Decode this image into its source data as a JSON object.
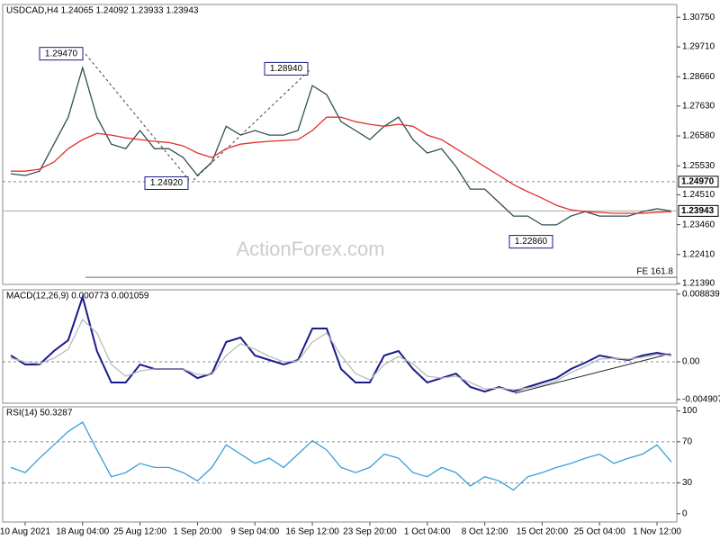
{
  "chart_data": [
    {
      "type": "line",
      "title": "USDCAD,H4  1.24065 1.24092 1.23933 1.23943",
      "categories": [
        null,
        "10 Aug 2021",
        null,
        null,
        null,
        "18 Aug 04:00",
        null,
        null,
        null,
        "25 Aug 12:00",
        null,
        null,
        null,
        "1 Sep 20:00",
        null,
        null,
        null,
        "9 Sep 04:00",
        null,
        null,
        null,
        "16 Sep 12:00",
        null,
        null,
        null,
        "23 Sep 20:00",
        null,
        null,
        null,
        "1 Oct 04:00",
        null,
        null,
        null,
        "8 Oct 12:00",
        null,
        null,
        null,
        "15 Oct 20:00",
        null,
        null,
        null,
        "25 Oct 04:00",
        null,
        null,
        null,
        "1 Nov 12:00",
        null
      ],
      "series": [
        {
          "color": "#2f4f4f",
          "values": [
            1.2525,
            1.2519,
            1.2534,
            1.2629,
            1.2724,
            1.2898,
            1.2724,
            1.2629,
            1.2613,
            1.2677,
            1.2613,
            1.2613,
            1.2582,
            1.2519,
            1.2566,
            1.2692,
            1.2661,
            1.2677,
            1.2661,
            1.2661,
            1.2677,
            1.2835,
            1.2803,
            1.2708,
            1.2677,
            1.2645,
            1.2692,
            1.2724,
            1.2645,
            1.2598,
            1.2613,
            1.255,
            1.2471,
            1.2471,
            1.2424,
            1.2376,
            1.2376,
            1.2345,
            1.2345,
            1.2376,
            1.2392,
            1.2376,
            1.2376,
            1.2376,
            1.2392,
            1.2402,
            1.2394
          ]
        },
        {
          "color": "#e0302a",
          "values": [
            1.2534,
            1.2534,
            1.2541,
            1.2566,
            1.2613,
            1.2645,
            1.2667,
            1.2661,
            1.2651,
            1.2645,
            1.2639,
            1.2635,
            1.2623,
            1.2598,
            1.2582,
            1.2613,
            1.2629,
            1.2635,
            1.2639,
            1.2642,
            1.2645,
            1.2677,
            1.2724,
            1.2724,
            1.2708,
            1.2699,
            1.2692,
            1.2699,
            1.2692,
            1.2661,
            1.2645,
            1.2613,
            1.2582,
            1.255,
            1.2519,
            1.2487,
            1.2462,
            1.2439,
            1.2414,
            1.2398,
            1.2392,
            1.2389,
            1.2386,
            1.2386,
            1.2386,
            1.2389,
            1.2392
          ]
        }
      ],
      "ylim": [
        1.2136,
        1.312
      ],
      "yticks": [
        {
          "value": 1.3075,
          "label": "1.30750"
        },
        {
          "value": 1.2971,
          "label": "1.29710"
        },
        {
          "value": 1.2866,
          "label": "1.28660"
        },
        {
          "value": 1.2763,
          "label": "1.27630"
        },
        {
          "value": 1.2658,
          "label": "1.26580"
        },
        {
          "value": 1.2553,
          "label": "1.25530"
        },
        {
          "value": 1.2451,
          "label": "1.24510"
        },
        {
          "value": 1.2346,
          "label": "1.23460"
        },
        {
          "value": 1.2241,
          "label": "1.22410"
        },
        {
          "value": 1.2139,
          "label": "1.21390"
        }
      ],
      "levels": [
        {
          "value": 1.2497,
          "label": "1.24970",
          "style": "dashed"
        },
        {
          "value": 1.23943,
          "label": "1.23943",
          "style": "solid"
        }
      ],
      "annotations": [
        {
          "value": 1.2947,
          "label": "1.29470"
        },
        {
          "value": 1.2894,
          "label": "1.28940"
        },
        {
          "value": 1.2492,
          "label": "1.24920"
        },
        {
          "value": 1.2286,
          "label": "1.22860"
        }
      ],
      "fe": {
        "value": 1.2161,
        "label": "FE 161.8"
      },
      "watermark": "ActionForex.com"
    },
    {
      "type": "line",
      "title": "MACD(12,26,9) 0.000773 0.001059",
      "series": [
        {
          "color": "#1a1a8c",
          "values": [
            0.00082,
            -0.00035,
            -0.00035,
            0.00141,
            0.00282,
            0.00846,
            0.00141,
            -0.0027,
            -0.0027,
            -0.00035,
            -0.00094,
            -0.00094,
            -0.00094,
            -0.00212,
            -0.00153,
            0.00259,
            0.00317,
            0.00082,
            0.00024,
            -0.00035,
            0.00024,
            0.00435,
            0.00435,
            -0.00094,
            -0.0027,
            -0.0027,
            0.00082,
            0.00141,
            -0.00094,
            -0.0027,
            -0.00212,
            -0.00153,
            -0.00329,
            -0.00388,
            -0.00329,
            -0.00388,
            -0.00329,
            -0.0027,
            -0.00212,
            -0.00094,
            -0.00012,
            0.00082,
            0.00047,
            0.00024,
            0.00082,
            0.00118,
            0.00082
          ]
        },
        {
          "color": "#bbbbbb",
          "values": [
            0.00047,
            0,
            -0.00024,
            0.00047,
            0.00165,
            0.00552,
            0.00376,
            -0.00035,
            -0.00188,
            -0.00118,
            -0.00094,
            -0.00094,
            -0.00094,
            -0.00165,
            -0.00165,
            0.00082,
            0.00235,
            0.00165,
            0.00071,
            0,
            0.00012,
            0.00259,
            0.00376,
            0.00082,
            -0.00153,
            -0.00235,
            -0.00035,
            0.00071,
            -0.00024,
            -0.00188,
            -0.00212,
            -0.00188,
            -0.0027,
            -0.00353,
            -0.00341,
            -0.00364,
            -0.00341,
            -0.00306,
            -0.00247,
            -0.00141,
            -0.00059,
            0.00035,
            0.00047,
            0.00035,
            0.00059,
            0.00094,
            0.00082
          ]
        }
      ],
      "ylim": [
        -0.0054,
        0.0094
      ],
      "yticks": [
        0.008839,
        {
          "value": 0,
          "label": "0.00"
        },
        -0.004907
      ],
      "levels": [
        0
      ]
    },
    {
      "type": "line",
      "title": "RSI(14) 50.3287",
      "series": [
        {
          "color": "#3a9fd8",
          "values": [
            45,
            40,
            54,
            67,
            80,
            89,
            62,
            36,
            40,
            49,
            45,
            45,
            40,
            32,
            45,
            67,
            58,
            49,
            54,
            45,
            58,
            71,
            62,
            45,
            40,
            45,
            58,
            54,
            40,
            36,
            45,
            40,
            27,
            36,
            32,
            23,
            36,
            40,
            45,
            49,
            54,
            58,
            49,
            54,
            58,
            67,
            50.3287
          ]
        }
      ],
      "ylim": [
        -8,
        104
      ],
      "yticks": [
        100,
        70,
        30,
        0
      ],
      "levels": [
        70,
        30
      ]
    }
  ]
}
